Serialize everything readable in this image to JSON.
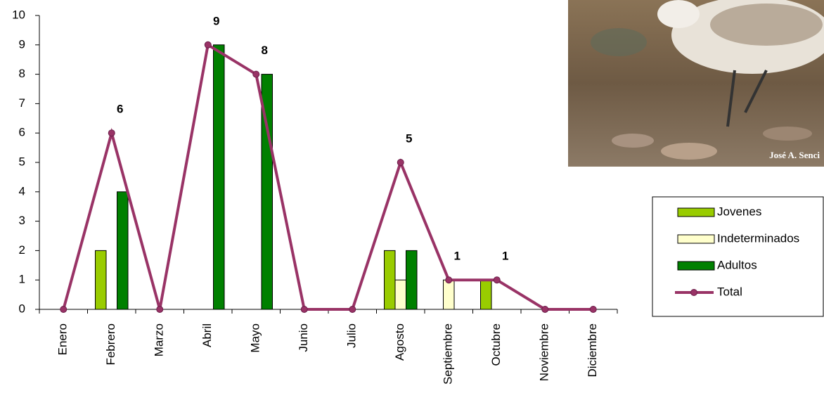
{
  "chart_data": {
    "type": "bar-line",
    "categories": [
      "Enero",
      "Febrero",
      "Marzo",
      "Abril",
      "Mayo",
      "Junio",
      "Julio",
      "Agosto",
      "Septiembre",
      "Octubre",
      "Noviembre",
      "Diciembre"
    ],
    "series": [
      {
        "name": "Jovenes",
        "type": "bar",
        "color": "#99cc00",
        "values": [
          0,
          2,
          0,
          0,
          0,
          0,
          0,
          2,
          0,
          1,
          0,
          0
        ]
      },
      {
        "name": "Indeterminados",
        "type": "bar",
        "color": "#ffffcc",
        "values": [
          0,
          0,
          0,
          0,
          0,
          0,
          0,
          1,
          1,
          0,
          0,
          0
        ]
      },
      {
        "name": "Adultos",
        "type": "bar",
        "color": "#008000",
        "values": [
          0,
          4,
          0,
          9,
          8,
          0,
          0,
          2,
          0,
          0,
          0,
          0
        ]
      },
      {
        "name": "Total",
        "type": "line",
        "color": "#993366",
        "values": [
          0,
          6,
          0,
          9,
          8,
          0,
          0,
          5,
          1,
          1,
          0,
          0
        ],
        "value_labels": [
          null,
          "6",
          null,
          "9",
          "8",
          null,
          null,
          "5",
          "1",
          "1",
          null,
          null
        ]
      }
    ],
    "ylim": [
      0,
      10
    ],
    "yticks": [
      0,
      1,
      2,
      3,
      4,
      5,
      6,
      7,
      8,
      9,
      10
    ],
    "grid": false,
    "legend": "right",
    "photo_credit": "José A. Senci"
  }
}
